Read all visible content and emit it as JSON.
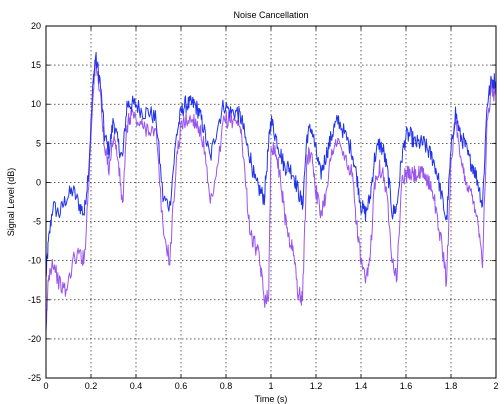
{
  "chart_data": {
    "type": "line",
    "title": "Noise Cancellation",
    "xlabel": "Time (s)",
    "ylabel": "Signal Level (dB)",
    "xlim": [
      0,
      2
    ],
    "ylim": [
      -25,
      20
    ],
    "xticks": [
      "0",
      "0.2",
      "0.4",
      "0.6",
      "0.8",
      "1",
      "1.2",
      "1.4",
      "1.6",
      "1.8",
      "2"
    ],
    "yticks": [
      "-25",
      "-20",
      "-15",
      "-10",
      "-5",
      "0",
      "5",
      "10",
      "15",
      "20"
    ],
    "grid": true,
    "series": [
      {
        "color": "#2233ee",
        "x": [
          0,
          0.01,
          0.03,
          0.06,
          0.09,
          0.12,
          0.15,
          0.17,
          0.19,
          0.21,
          0.22,
          0.24,
          0.26,
          0.28,
          0.3,
          0.32,
          0.34,
          0.36,
          0.38,
          0.4,
          0.43,
          0.46,
          0.49,
          0.52,
          0.55,
          0.58,
          0.6,
          0.62,
          0.64,
          0.66,
          0.68,
          0.7,
          0.73,
          0.76,
          0.79,
          0.82,
          0.85,
          0.87,
          0.89,
          0.91,
          0.93,
          0.95,
          0.97,
          0.99,
          1.0,
          1.02,
          1.04,
          1.06,
          1.08,
          1.1,
          1.12,
          1.14,
          1.16,
          1.18,
          1.2,
          1.22,
          1.24,
          1.26,
          1.28,
          1.3,
          1.33,
          1.36,
          1.38,
          1.4,
          1.42,
          1.44,
          1.46,
          1.48,
          1.5,
          1.52,
          1.54,
          1.56,
          1.58,
          1.6,
          1.62,
          1.64,
          1.66,
          1.68,
          1.7,
          1.72,
          1.74,
          1.76,
          1.78,
          1.8,
          1.82,
          1.84,
          1.86,
          1.88,
          1.9,
          1.92,
          1.94,
          1.96,
          1.98,
          2.0
        ],
        "y": [
          -12,
          -8,
          -3,
          -4,
          -2,
          -1,
          -3,
          -4,
          2,
          13,
          16,
          13,
          6,
          4,
          8,
          5,
          3,
          10,
          10,
          10,
          9,
          9,
          8,
          -2,
          -3,
          6,
          9,
          10,
          10,
          10,
          9,
          7,
          3,
          7,
          10,
          9,
          9,
          8,
          5,
          3,
          0,
          -1,
          -2,
          5,
          8,
          6,
          4,
          2,
          2,
          1,
          -1,
          -3,
          6,
          7,
          4,
          1,
          3,
          5,
          7,
          8,
          6,
          4,
          1,
          -3,
          -4,
          -2,
          3,
          5,
          4,
          1,
          -4,
          -3,
          3,
          6,
          6,
          5,
          5,
          5,
          4,
          3,
          1,
          -2,
          -5,
          4,
          9,
          6,
          5,
          3,
          2,
          0,
          -3,
          10,
          13,
          13
        ]
      },
      {
        "color": "#9955ee",
        "x": [
          0,
          0.01,
          0.03,
          0.06,
          0.09,
          0.12,
          0.15,
          0.17,
          0.19,
          0.21,
          0.22,
          0.24,
          0.26,
          0.28,
          0.3,
          0.32,
          0.34,
          0.36,
          0.38,
          0.4,
          0.43,
          0.46,
          0.49,
          0.52,
          0.55,
          0.58,
          0.6,
          0.62,
          0.64,
          0.66,
          0.68,
          0.7,
          0.73,
          0.76,
          0.79,
          0.82,
          0.85,
          0.87,
          0.89,
          0.91,
          0.93,
          0.95,
          0.97,
          0.99,
          1.0,
          1.02,
          1.04,
          1.06,
          1.08,
          1.1,
          1.12,
          1.14,
          1.16,
          1.18,
          1.2,
          1.22,
          1.24,
          1.26,
          1.28,
          1.3,
          1.33,
          1.36,
          1.38,
          1.4,
          1.42,
          1.44,
          1.46,
          1.48,
          1.5,
          1.52,
          1.54,
          1.56,
          1.58,
          1.6,
          1.62,
          1.64,
          1.66,
          1.68,
          1.7,
          1.72,
          1.74,
          1.76,
          1.78,
          1.8,
          1.82,
          1.84,
          1.86,
          1.88,
          1.9,
          1.92,
          1.94,
          1.96,
          1.98,
          2.0
        ],
        "y": [
          -20,
          -12,
          -10,
          -13,
          -14,
          -10,
          -9,
          -10,
          0,
          12,
          15,
          12,
          4,
          2,
          6,
          3,
          -3,
          7,
          9,
          8,
          7,
          7,
          6,
          -6,
          -10,
          3,
          7,
          8,
          8,
          8,
          7,
          5,
          -3,
          1,
          8,
          8,
          8,
          6,
          -1,
          -7,
          -8,
          -10,
          -15,
          -14,
          5,
          4,
          1,
          -4,
          -7,
          -9,
          -14,
          -15,
          3,
          4,
          -1,
          -4,
          -2,
          2,
          5,
          5,
          3,
          1,
          -5,
          -10,
          -13,
          -10,
          0,
          2,
          1,
          -3,
          -10,
          -12,
          0,
          1,
          1,
          1,
          1,
          1,
          0,
          -1,
          -5,
          -8,
          -13,
          3,
          8,
          3,
          1,
          -1,
          -2,
          -5,
          -10,
          7,
          12,
          11
        ]
      }
    ]
  }
}
